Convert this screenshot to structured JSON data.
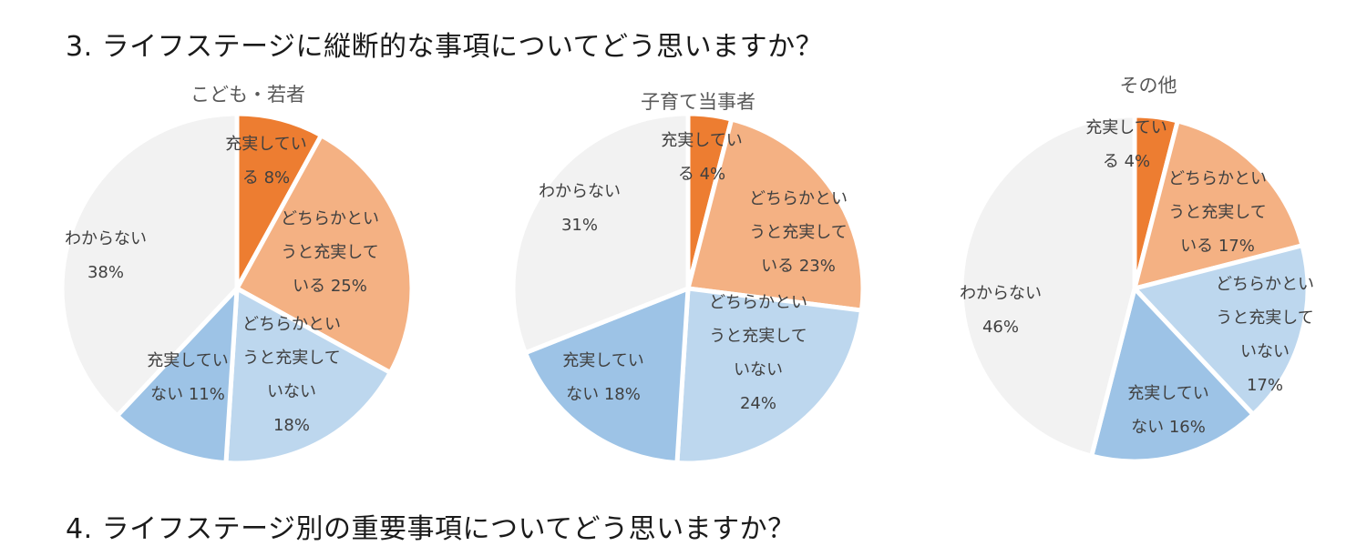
{
  "headings": {
    "q3": "3.  ライフステージに縦断的な事項についてどう思いますか？",
    "q4": "4.  ライフステージ別の重要事項についてどう思いますか？"
  },
  "colors": {
    "fulfilled": "#ED7D31",
    "somewhat_fulfilled": "#F4B183",
    "somewhat_not_fulfilled": "#BDD7EE",
    "not_fulfilled": "#9DC3E6",
    "unknown": "#F2F2F2"
  },
  "chart_data": [
    {
      "type": "pie",
      "title": "こども・若者",
      "categories": [
        "充実している",
        "どちらかというと充実している",
        "どちらかというと充実していない",
        "充実していない",
        "わからない"
      ],
      "values": [
        8,
        25,
        18,
        11,
        38
      ],
      "labels": [
        [
          "充実してい",
          "る 8%"
        ],
        [
          "どちらかとい",
          "うと充実して",
          "いる 25%"
        ],
        [
          "どちらかとい",
          "うと充実して",
          "いない",
          "18%"
        ],
        [
          "充実してい",
          "ない 11%"
        ],
        [
          "わからない",
          "38%"
        ]
      ],
      "start_angle": 0,
      "direction": "clockwise"
    },
    {
      "type": "pie",
      "title": "子育て当事者",
      "categories": [
        "充実している",
        "どちらかというと充実している",
        "どちらかというと充実していない",
        "充実していない",
        "わからない"
      ],
      "values": [
        4,
        23,
        24,
        18,
        31
      ],
      "labels": [
        [
          "充実してい",
          "る 4%"
        ],
        [
          "どちらかとい",
          "うと充実して",
          "いる 23%"
        ],
        [
          "どちらかとい",
          "うと充実して",
          "いない",
          "24%"
        ],
        [
          "充実してい",
          "ない 18%"
        ],
        [
          "わからない",
          "31%"
        ]
      ],
      "start_angle": 0,
      "direction": "clockwise"
    },
    {
      "type": "pie",
      "title": "その他",
      "categories": [
        "充実している",
        "どちらかというと充実している",
        "どちらかというと充実していない",
        "充実していない",
        "わからない"
      ],
      "values": [
        4,
        17,
        17,
        16,
        46
      ],
      "labels": [
        [
          "充実してい",
          "る 4%"
        ],
        [
          "どちらかとい",
          "うと充実して",
          "いる 17%"
        ],
        [
          "どちらかとい",
          "うと充実して",
          "いない",
          "17%"
        ],
        [
          "充実してい",
          "ない 16%"
        ],
        [
          "わからない",
          "46%"
        ]
      ],
      "start_angle": 0,
      "direction": "clockwise"
    }
  ]
}
